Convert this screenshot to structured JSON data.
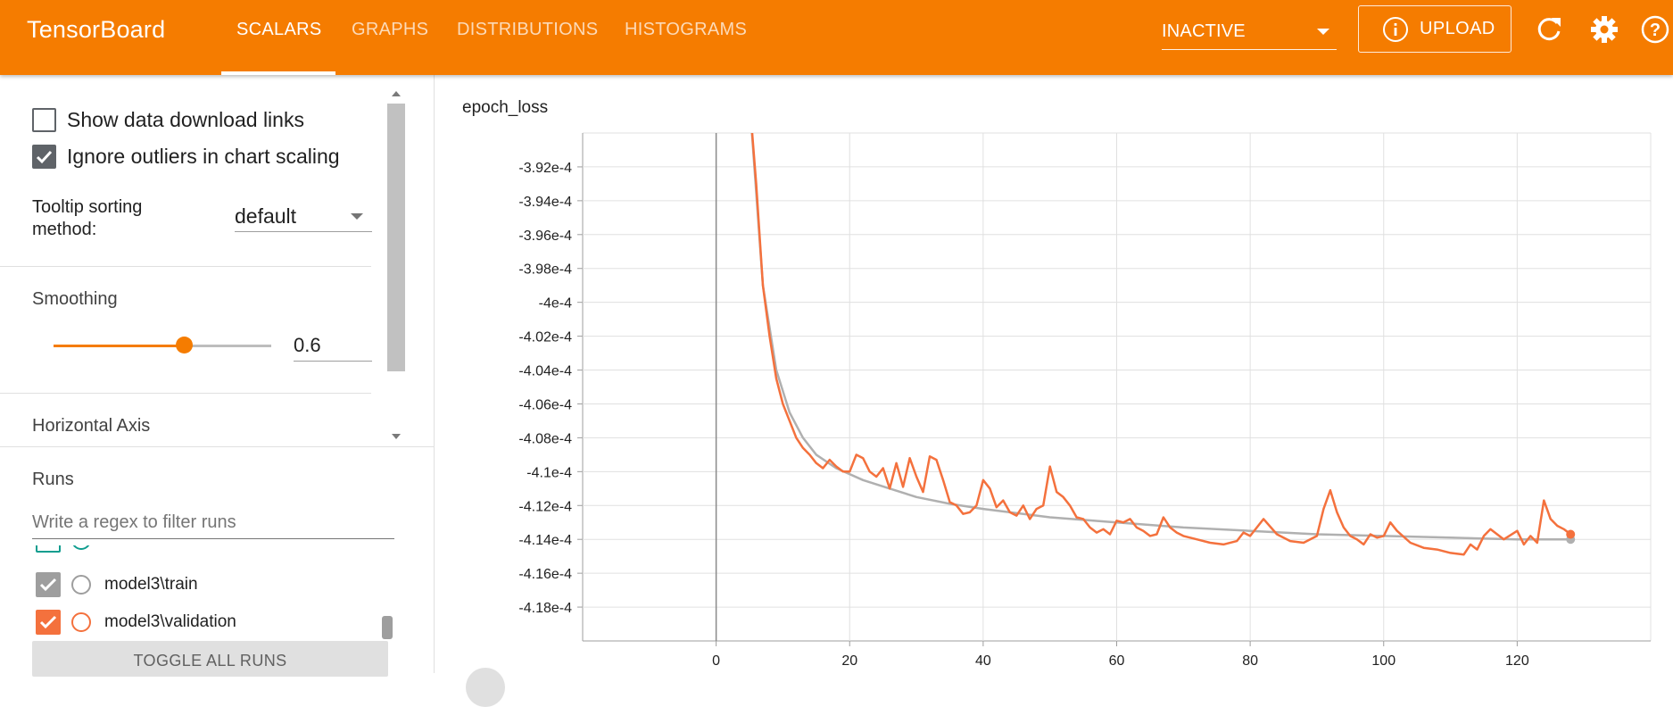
{
  "header": {
    "brand": "TensorBoard",
    "tabs": [
      {
        "label": "SCALARS",
        "active": true
      },
      {
        "label": "GRAPHS",
        "active": false
      },
      {
        "label": "DISTRIBUTIONS",
        "active": false
      },
      {
        "label": "HISTOGRAMS",
        "active": false
      }
    ],
    "inactive_select": "INACTIVE",
    "upload_label": "UPLOAD",
    "icons": [
      "info-icon",
      "refresh-icon",
      "settings-icon",
      "help-icon"
    ],
    "accent_color": "#f57c00"
  },
  "sidebar": {
    "show_download_links": {
      "label": "Show data download links",
      "checked": false
    },
    "ignore_outliers": {
      "label": "Ignore outliers in chart scaling",
      "checked": true
    },
    "tooltip_sorting": {
      "label": "Tooltip sorting method:",
      "value": "default"
    },
    "smoothing": {
      "title": "Smoothing",
      "value": "0.6",
      "fraction": 0.6
    },
    "horizontal_axis_title": "Horizontal Axis",
    "runs_title": "Runs",
    "runs_filter_placeholder": "Write a regex to filter runs",
    "runs": [
      {
        "label": "model3\\train",
        "checked": true,
        "color": "#9e9e9e"
      },
      {
        "label": "model3\\validation",
        "checked": true,
        "color": "#f4713d"
      }
    ],
    "partial_run_color": "#0f9d8f",
    "toggle_all_label": "TOGGLE ALL RUNS"
  },
  "chart": {
    "title": "epoch_loss",
    "y_tick_labels": [
      "-3.92e-4",
      "-3.94e-4",
      "-3.96e-4",
      "-3.98e-4",
      "-4e-4",
      "-4.02e-4",
      "-4.04e-4",
      "-4.06e-4",
      "-4.08e-4",
      "-4.1e-4",
      "-4.12e-4",
      "-4.14e-4",
      "-4.16e-4",
      "-4.18e-4"
    ],
    "x_tick_labels": [
      "0",
      "20",
      "40",
      "60",
      "80",
      "100",
      "120"
    ]
  },
  "chart_data": {
    "type": "line",
    "title": "epoch_loss",
    "xlabel": "",
    "ylabel": "",
    "xlim": [
      -20,
      140
    ],
    "ylim": [
      -0.00042,
      -0.00039
    ],
    "y_ticks": [
      -0.000392,
      -0.000394,
      -0.000396,
      -0.000398,
      -0.0004,
      -0.000402,
      -0.000404,
      -0.000406,
      -0.000408,
      -0.00041,
      -0.000412,
      -0.000414,
      -0.000416,
      -0.000418
    ],
    "x_ticks": [
      0,
      20,
      40,
      60,
      80,
      100,
      120
    ],
    "grid": true,
    "series": [
      {
        "name": "model3\\train",
        "color": "#b0b0b0",
        "x": [
          5,
          7,
          9,
          11,
          13,
          15,
          18,
          22,
          26,
          30,
          35,
          40,
          50,
          60,
          70,
          80,
          90,
          100,
          110,
          120,
          128
        ],
        "y": [
          -0.000388,
          -0.000399,
          -0.000404,
          -0.0004065,
          -0.000408,
          -0.000409,
          -0.0004098,
          -0.0004105,
          -0.000411,
          -0.0004115,
          -0.0004119,
          -0.0004122,
          -0.0004127,
          -0.000413,
          -0.0004133,
          -0.0004135,
          -0.0004137,
          -0.0004138,
          -0.0004139,
          -0.000414,
          -0.000414
        ]
      },
      {
        "name": "model3\\validation",
        "color": "#f4713d",
        "x": [
          5,
          6,
          7,
          8,
          9,
          10,
          11,
          12,
          13,
          14,
          15,
          16,
          17,
          18,
          19,
          20,
          21,
          22,
          23,
          24,
          25,
          26,
          27,
          28,
          29,
          30,
          31,
          32,
          33,
          34,
          35,
          36,
          37,
          38,
          39,
          40,
          41,
          42,
          43,
          44,
          45,
          46,
          47,
          48,
          49,
          50,
          51,
          52,
          53,
          54,
          55,
          56,
          57,
          58,
          59,
          60,
          61,
          62,
          63,
          64,
          65,
          66,
          67,
          68,
          69,
          70,
          72,
          74,
          76,
          78,
          79,
          80,
          82,
          84,
          86,
          88,
          90,
          91,
          92,
          93,
          94,
          95,
          96,
          97,
          98,
          99,
          100,
          101,
          102,
          104,
          106,
          108,
          110,
          112,
          113,
          114,
          115,
          116,
          118,
          120,
          121,
          122,
          123,
          124,
          125,
          126,
          127,
          128
        ],
        "y": [
          -0.000388,
          -0.000393,
          -0.000399,
          -0.000402,
          -0.0004045,
          -0.000406,
          -0.000407,
          -0.000408,
          -0.0004086,
          -0.000409,
          -0.0004095,
          -0.0004098,
          -0.0004093,
          -0.0004097,
          -0.00041,
          -0.00041,
          -0.000409,
          -0.0004092,
          -0.00041,
          -0.0004103,
          -0.0004098,
          -0.000411,
          -0.0004095,
          -0.0004109,
          -0.0004092,
          -0.0004103,
          -0.0004112,
          -0.0004091,
          -0.0004093,
          -0.0004105,
          -0.0004118,
          -0.000412,
          -0.0004125,
          -0.0004124,
          -0.000412,
          -0.0004105,
          -0.000411,
          -0.0004121,
          -0.0004117,
          -0.0004124,
          -0.0004126,
          -0.000412,
          -0.0004128,
          -0.0004122,
          -0.000412,
          -0.0004097,
          -0.0004112,
          -0.0004115,
          -0.000412,
          -0.0004127,
          -0.0004128,
          -0.0004133,
          -0.0004136,
          -0.0004134,
          -0.0004137,
          -0.0004129,
          -0.000413,
          -0.0004128,
          -0.0004133,
          -0.0004135,
          -0.0004138,
          -0.0004137,
          -0.0004127,
          -0.0004133,
          -0.0004136,
          -0.0004138,
          -0.000414,
          -0.0004142,
          -0.0004143,
          -0.0004141,
          -0.0004136,
          -0.0004138,
          -0.0004128,
          -0.0004137,
          -0.0004141,
          -0.0004142,
          -0.0004138,
          -0.0004122,
          -0.0004111,
          -0.0004124,
          -0.0004133,
          -0.0004138,
          -0.000414,
          -0.0004143,
          -0.0004137,
          -0.0004139,
          -0.0004138,
          -0.000413,
          -0.0004135,
          -0.0004142,
          -0.0004145,
          -0.0004146,
          -0.0004148,
          -0.0004149,
          -0.0004143,
          -0.0004146,
          -0.0004138,
          -0.0004134,
          -0.000414,
          -0.0004135,
          -0.0004143,
          -0.0004138,
          -0.0004142,
          -0.0004117,
          -0.0004128,
          -0.0004132,
          -0.0004134,
          -0.0004137
        ]
      }
    ]
  }
}
